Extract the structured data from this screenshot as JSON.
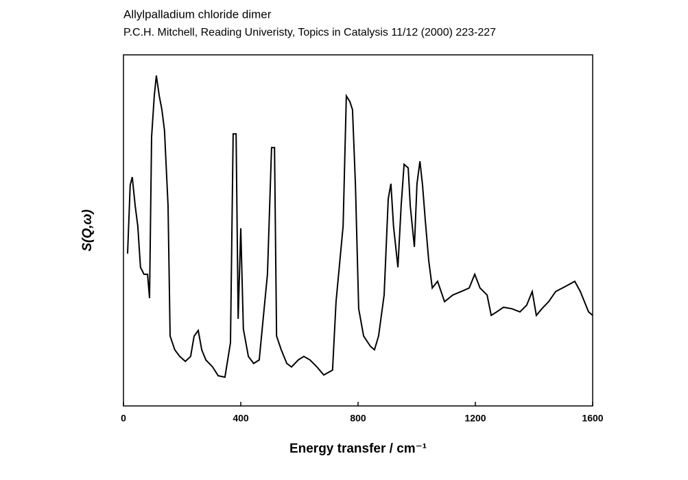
{
  "chart_data": {
    "type": "line",
    "title": "Allylpalladium chloride dimer",
    "subtitle": "P.C.H. Mitchell, Reading Univeristy, Topics in Catalysis 11/12 (2000) 223-227",
    "x_label": "Energy transfer / cm⁻¹",
    "y_label": "S(Q,ω)",
    "xlim": [
      0,
      1600
    ],
    "xticks": [
      0,
      400,
      800,
      1200,
      1600
    ],
    "ylim": [
      0,
      100
    ],
    "color": "#000000",
    "x": [
      14,
      23,
      30,
      40,
      49,
      58,
      70,
      82,
      89,
      96,
      105,
      112,
      122,
      131,
      140,
      152,
      159,
      175,
      192,
      211,
      229,
      241,
      255,
      267,
      281,
      304,
      323,
      346,
      365,
      374,
      384,
      391,
      400,
      409,
      426,
      444,
      463,
      491,
      505,
      515,
      522,
      538,
      557,
      573,
      596,
      615,
      636,
      660,
      683,
      713,
      725,
      749,
      760,
      772,
      781,
      791,
      802,
      819,
      842,
      856,
      870,
      889,
      903,
      912,
      921,
      936,
      947,
      957,
      971,
      978,
      992,
      1001,
      1011,
      1020,
      1029,
      1041,
      1053,
      1071,
      1095,
      1123,
      1152,
      1179,
      1198,
      1216,
      1240,
      1254,
      1273,
      1296,
      1324,
      1352,
      1375,
      1394,
      1408,
      1427,
      1450,
      1474,
      1497,
      1520,
      1539,
      1558,
      1572,
      1586,
      1600
    ],
    "values": [
      43.4,
      62.9,
      65.2,
      57,
      51.2,
      39.5,
      37.5,
      37.5,
      30.7,
      76.6,
      88.3,
      94.1,
      88.3,
      84.4,
      78.5,
      57,
      19.9,
      16,
      14.1,
      12.7,
      14.1,
      19.9,
      21.5,
      16,
      13.1,
      11.1,
      8.6,
      8.2,
      18,
      77.5,
      77.5,
      24.8,
      50.6,
      21.9,
      14.1,
      12.1,
      13.1,
      37.5,
      73.6,
      73.6,
      19.9,
      16,
      12.1,
      11.1,
      13.1,
      14.1,
      13.1,
      11.1,
      8.8,
      10.2,
      29.7,
      51.2,
      88.3,
      86.7,
      84.4,
      62.9,
      27.7,
      19.9,
      17,
      16,
      19.9,
      31.6,
      59,
      63.3,
      51.2,
      39.5,
      57,
      68.8,
      67.8,
      57,
      45.3,
      63.3,
      69.7,
      62.9,
      53.1,
      41.4,
      33.6,
      35.5,
      29.7,
      31.6,
      32.6,
      33.6,
      37.5,
      33.6,
      31.6,
      25.8,
      26.8,
      28.1,
      27.7,
      26.8,
      28.7,
      32.6,
      25.8,
      27.7,
      29.7,
      32.6,
      33.6,
      34.6,
      35.5,
      32.6,
      29.7,
      26.8,
      25.8
    ]
  }
}
